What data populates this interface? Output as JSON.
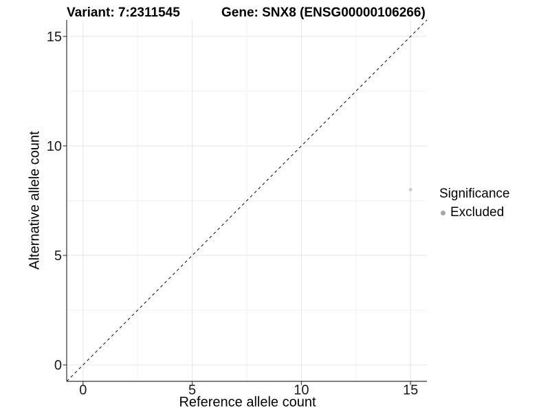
{
  "chart_data": {
    "type": "scatter",
    "title_left": "Variant: 7:2311545",
    "title_right": "Gene: SNX8 (ENSG00000106266)",
    "xlabel": "Reference allele count",
    "ylabel": "Alternative allele count",
    "xlim": [
      -0.75,
      15.75
    ],
    "ylim": [
      -0.75,
      15.75
    ],
    "x_ticks": [
      0,
      5,
      10,
      15
    ],
    "y_ticks": [
      0,
      5,
      10,
      15
    ],
    "minor_gridlines_x": [
      2.5,
      7.5,
      12.5
    ],
    "minor_gridlines_y": [
      2.5,
      7.5,
      12.5
    ],
    "grid": true,
    "series": [
      {
        "name": "Excluded",
        "color": "#c8c8c8",
        "marker": "circle",
        "points": [
          {
            "x": 15,
            "y": 8
          }
        ]
      }
    ],
    "reference_line": {
      "type": "identity",
      "style": "dashed",
      "from": [
        -0.75,
        -0.75
      ],
      "to": [
        15.75,
        15.75
      ],
      "color": "#1a1a1a"
    },
    "legend": {
      "title": "Significance",
      "position": "right",
      "items": [
        {
          "label": "Excluded",
          "swatch_color": "#a6a6a6",
          "marker": "circle"
        }
      ]
    }
  },
  "colors": {
    "background": "#ffffff",
    "axis_line": "#333333",
    "tick_mark": "#333333",
    "major_grid": "#e5e5e5",
    "minor_grid": "#f2f2f2",
    "tick_label": "#1a1a1a",
    "title_text": "#000000"
  }
}
